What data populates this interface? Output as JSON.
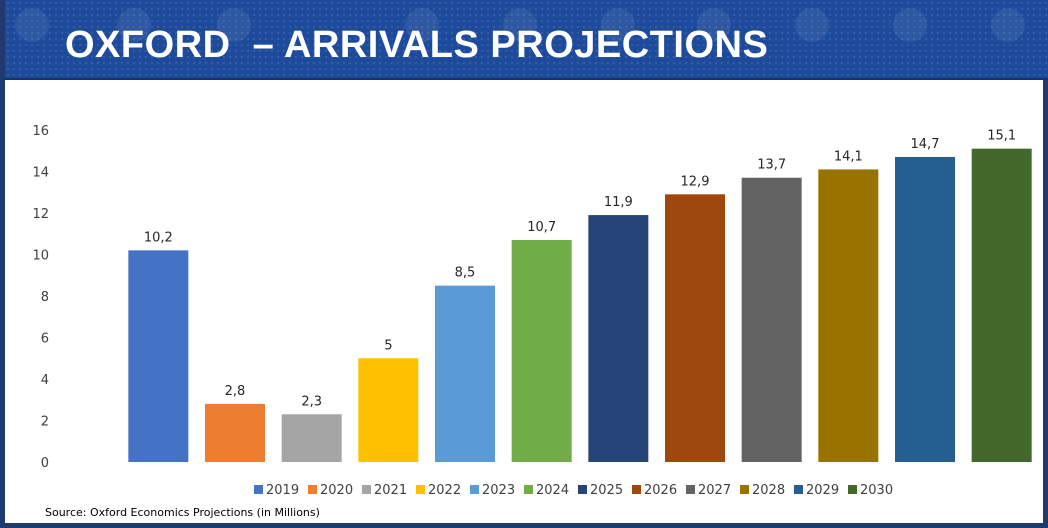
{
  "title": "OXFORD  – ARRIVALS PROJECTIONS",
  "source": "Source: Oxford Economics Projections (in Millions)",
  "chart_data": {
    "type": "bar",
    "categories": [
      "2019",
      "2020",
      "2021",
      "2022",
      "2023",
      "2024",
      "2025",
      "2026",
      "2027",
      "2028",
      "2029",
      "2030"
    ],
    "values": [
      10.2,
      2.8,
      2.3,
      5,
      8.5,
      10.7,
      11.9,
      12.9,
      13.7,
      14.1,
      14.7,
      15.1
    ],
    "value_labels": [
      "10,2",
      "2,8",
      "2,3",
      "5",
      "8,5",
      "10,7",
      "11,9",
      "12,9",
      "13,7",
      "14,1",
      "14,7",
      "15,1"
    ],
    "colors": [
      "#4472c4",
      "#ed7d31",
      "#a5a5a5",
      "#ffc000",
      "#5b9bd5",
      "#70ad47",
      "#264478",
      "#9e480e",
      "#636363",
      "#997300",
      "#255e91",
      "#43682b"
    ],
    "yticks": [
      "0",
      "2",
      "4",
      "6",
      "8",
      "10",
      "12",
      "14",
      "16"
    ],
    "ylim": [
      0,
      16
    ],
    "grid": false,
    "legend_position": "bottom",
    "title": "",
    "xlabel": "",
    "ylabel": ""
  }
}
